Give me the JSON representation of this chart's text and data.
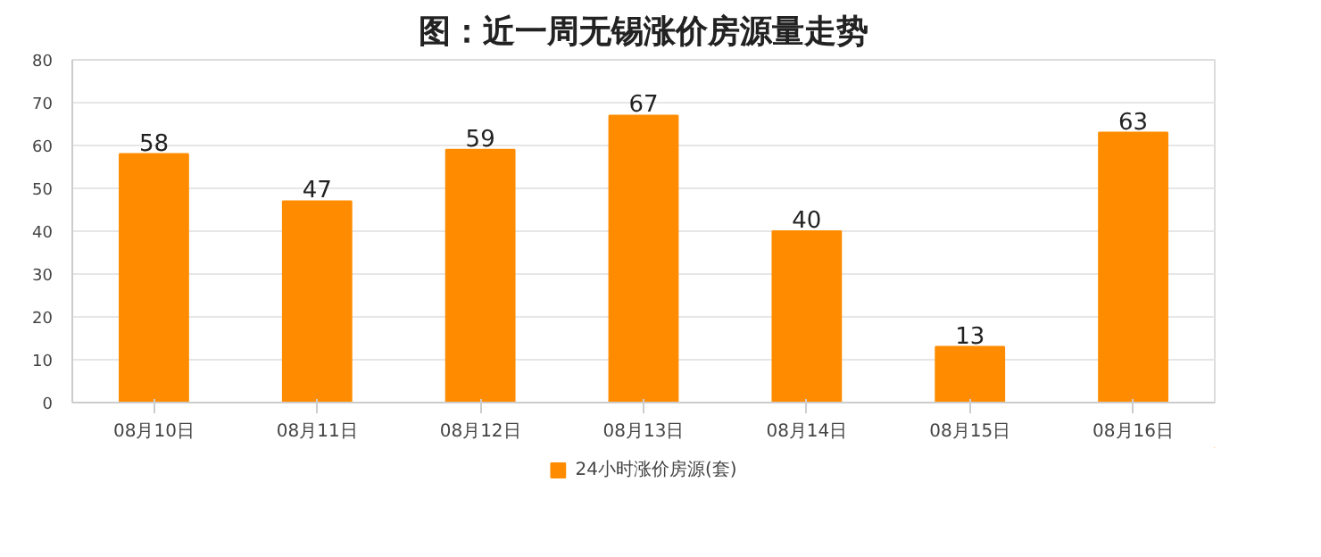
{
  "chart_data": {
    "type": "bar",
    "title": "图：近一周无锡涨价房源量走势",
    "categories": [
      "08月10日",
      "08月11日",
      "08月12日",
      "08月13日",
      "08月14日",
      "08月15日",
      "08月16日"
    ],
    "series": [
      {
        "name": "24小时涨价房源(套)",
        "color": "#ff8c00",
        "values": [
          58,
          47,
          59,
          67,
          40,
          13,
          63
        ]
      }
    ],
    "ylim": [
      0,
      80
    ],
    "yticks": [
      0,
      10,
      20,
      30,
      40,
      50,
      60,
      70,
      80
    ],
    "grid": "y",
    "legend": "bottom",
    "data_labels": true
  }
}
